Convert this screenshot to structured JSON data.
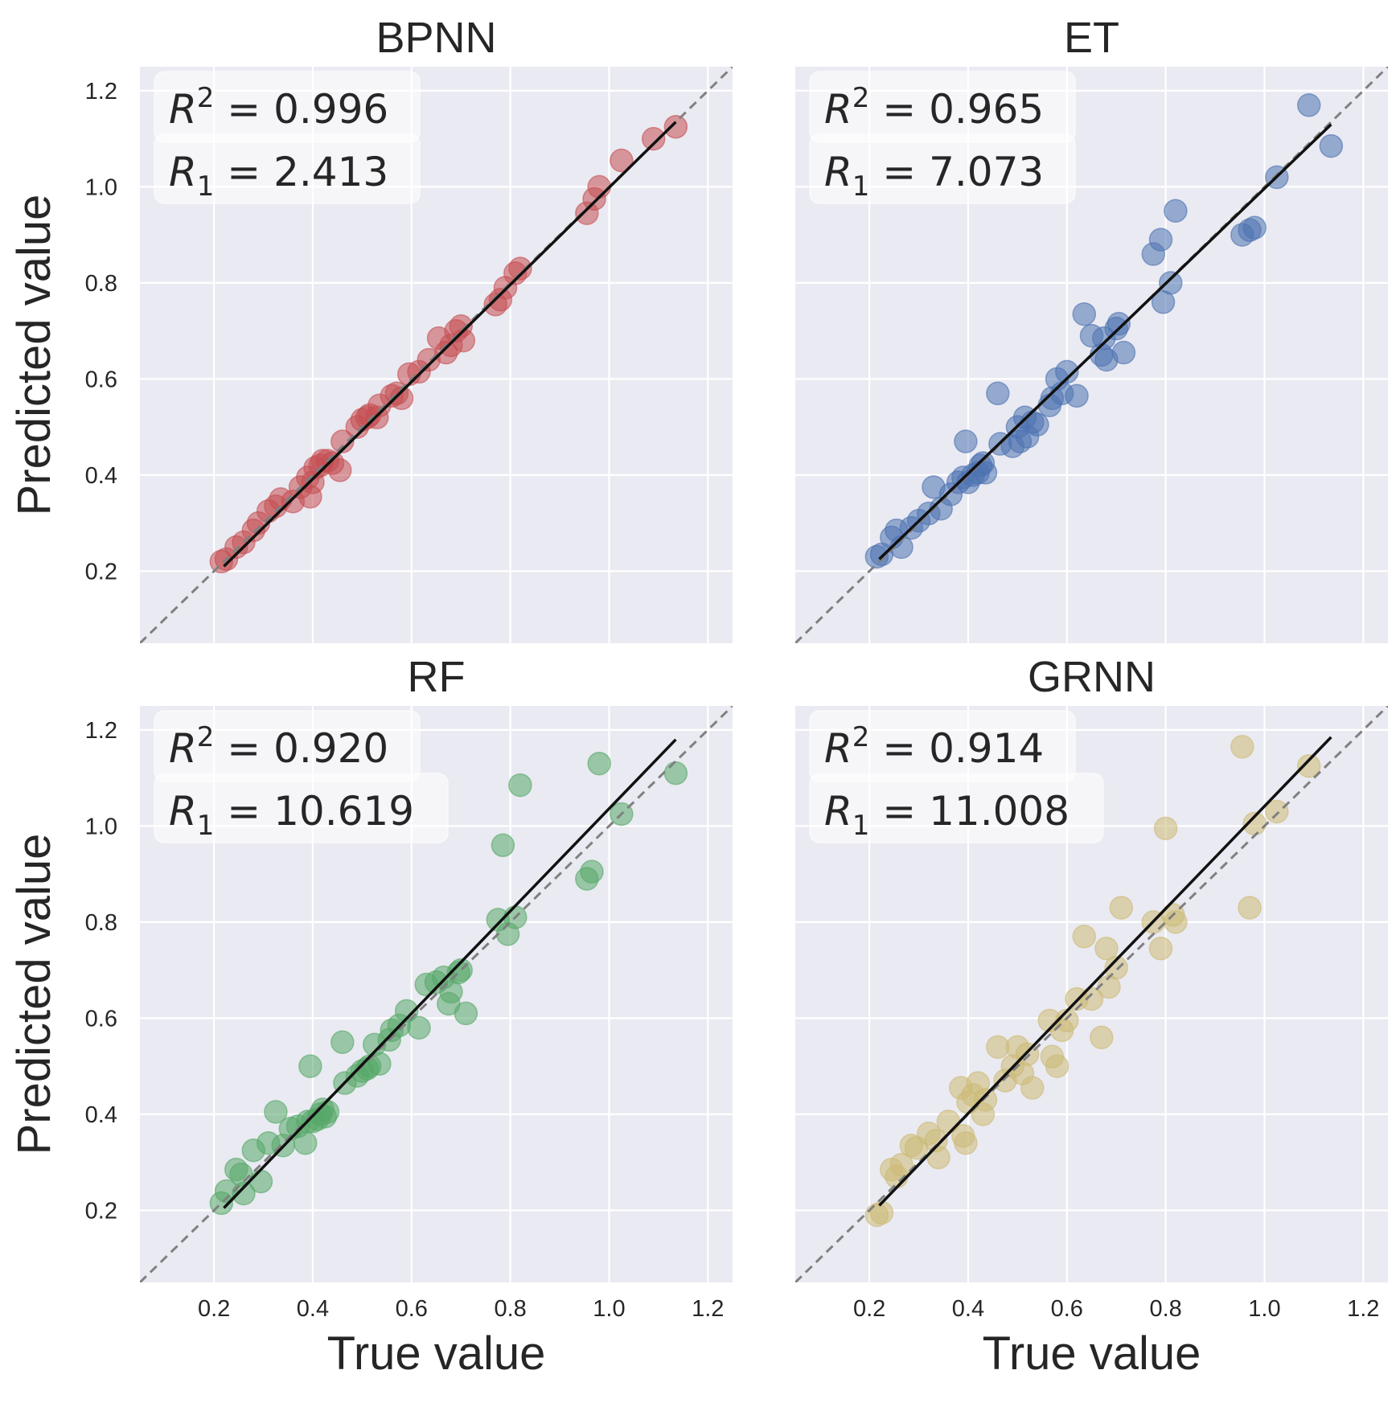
{
  "chart_data": [
    {
      "type": "scatter",
      "title": "BPNN",
      "xlabel": "",
      "ylabel": "Predicted value",
      "xlim": [
        0.05,
        1.25
      ],
      "ylim": [
        0.05,
        1.25
      ],
      "xticks": [
        "0.2",
        "0.4",
        "0.6",
        "0.8",
        "1.0",
        "1.2"
      ],
      "yticks": [
        "0.2",
        "0.4",
        "0.6",
        "0.8",
        "1.0",
        "1.2"
      ],
      "show_xticks": false,
      "show_yticks": true,
      "color": "#c44e52",
      "annotation": {
        "r2_sym": "R",
        "r2_sup": "2",
        "r2_val": " = 0.996",
        "r1_sym": "R",
        "r1_sub": "1",
        "r1_val": " = 2.413"
      },
      "fit_line": [
        [
          0.22,
          0.21
        ],
        [
          1.135,
          1.135
        ]
      ],
      "points": [
        [
          0.215,
          0.22
        ],
        [
          0.225,
          0.225
        ],
        [
          0.245,
          0.25
        ],
        [
          0.26,
          0.26
        ],
        [
          0.28,
          0.285
        ],
        [
          0.29,
          0.3
        ],
        [
          0.31,
          0.325
        ],
        [
          0.325,
          0.335
        ],
        [
          0.335,
          0.35
        ],
        [
          0.36,
          0.345
        ],
        [
          0.375,
          0.375
        ],
        [
          0.39,
          0.395
        ],
        [
          0.395,
          0.355
        ],
        [
          0.4,
          0.385
        ],
        [
          0.405,
          0.415
        ],
        [
          0.415,
          0.42
        ],
        [
          0.42,
          0.43
        ],
        [
          0.43,
          0.43
        ],
        [
          0.44,
          0.425
        ],
        [
          0.455,
          0.41
        ],
        [
          0.46,
          0.47
        ],
        [
          0.49,
          0.5
        ],
        [
          0.5,
          0.515
        ],
        [
          0.51,
          0.52
        ],
        [
          0.515,
          0.525
        ],
        [
          0.53,
          0.52
        ],
        [
          0.535,
          0.545
        ],
        [
          0.56,
          0.565
        ],
        [
          0.57,
          0.57
        ],
        [
          0.58,
          0.56
        ],
        [
          0.595,
          0.61
        ],
        [
          0.615,
          0.615
        ],
        [
          0.635,
          0.64
        ],
        [
          0.655,
          0.685
        ],
        [
          0.67,
          0.655
        ],
        [
          0.68,
          0.67
        ],
        [
          0.69,
          0.7
        ],
        [
          0.7,
          0.71
        ],
        [
          0.705,
          0.68
        ],
        [
          0.77,
          0.755
        ],
        [
          0.78,
          0.765
        ],
        [
          0.79,
          0.79
        ],
        [
          0.81,
          0.82
        ],
        [
          0.82,
          0.83
        ],
        [
          0.955,
          0.945
        ],
        [
          0.97,
          0.975
        ],
        [
          0.98,
          1.0
        ],
        [
          1.025,
          1.055
        ],
        [
          1.09,
          1.1
        ],
        [
          1.135,
          1.125
        ]
      ]
    },
    {
      "type": "scatter",
      "title": "ET",
      "xlabel": "",
      "ylabel": "",
      "xlim": [
        0.05,
        1.25
      ],
      "ylim": [
        0.05,
        1.25
      ],
      "xticks": [
        "0.2",
        "0.4",
        "0.6",
        "0.8",
        "1.0",
        "1.2"
      ],
      "yticks": [
        "0.2",
        "0.4",
        "0.6",
        "0.8",
        "1.0",
        "1.2"
      ],
      "show_xticks": false,
      "show_yticks": false,
      "color": "#4c72b0",
      "annotation": {
        "r2_sym": "R",
        "r2_sup": "2",
        "r2_val": " = 0.965",
        "r1_sym": "R",
        "r1_sub": "1",
        "r1_val": " = 7.073"
      },
      "fit_line": [
        [
          0.22,
          0.225
        ],
        [
          1.135,
          1.13
        ]
      ],
      "points": [
        [
          0.215,
          0.23
        ],
        [
          0.225,
          0.235
        ],
        [
          0.245,
          0.27
        ],
        [
          0.255,
          0.285
        ],
        [
          0.265,
          0.25
        ],
        [
          0.285,
          0.29
        ],
        [
          0.3,
          0.305
        ],
        [
          0.32,
          0.32
        ],
        [
          0.33,
          0.375
        ],
        [
          0.345,
          0.33
        ],
        [
          0.365,
          0.36
        ],
        [
          0.38,
          0.385
        ],
        [
          0.39,
          0.395
        ],
        [
          0.395,
          0.47
        ],
        [
          0.4,
          0.385
        ],
        [
          0.41,
          0.4
        ],
        [
          0.42,
          0.405
        ],
        [
          0.425,
          0.42
        ],
        [
          0.43,
          0.425
        ],
        [
          0.435,
          0.405
        ],
        [
          0.46,
          0.57
        ],
        [
          0.465,
          0.465
        ],
        [
          0.49,
          0.46
        ],
        [
          0.5,
          0.5
        ],
        [
          0.505,
          0.47
        ],
        [
          0.515,
          0.52
        ],
        [
          0.52,
          0.48
        ],
        [
          0.53,
          0.51
        ],
        [
          0.54,
          0.505
        ],
        [
          0.565,
          0.545
        ],
        [
          0.57,
          0.56
        ],
        [
          0.58,
          0.6
        ],
        [
          0.59,
          0.57
        ],
        [
          0.6,
          0.615
        ],
        [
          0.62,
          0.565
        ],
        [
          0.635,
          0.735
        ],
        [
          0.65,
          0.69
        ],
        [
          0.67,
          0.65
        ],
        [
          0.675,
          0.685
        ],
        [
          0.68,
          0.64
        ],
        [
          0.7,
          0.705
        ],
        [
          0.705,
          0.715
        ],
        [
          0.715,
          0.655
        ],
        [
          0.775,
          0.86
        ],
        [
          0.79,
          0.89
        ],
        [
          0.795,
          0.76
        ],
        [
          0.81,
          0.8
        ],
        [
          0.82,
          0.95
        ],
        [
          0.955,
          0.9
        ],
        [
          0.97,
          0.91
        ],
        [
          0.98,
          0.915
        ],
        [
          1.025,
          1.02
        ],
        [
          1.09,
          1.17
        ],
        [
          1.135,
          1.085
        ]
      ]
    },
    {
      "type": "scatter",
      "title": "RF",
      "xlabel": "True value",
      "ylabel": "Predicted value",
      "xlim": [
        0.05,
        1.25
      ],
      "ylim": [
        0.05,
        1.25
      ],
      "xticks": [
        "0.2",
        "0.4",
        "0.6",
        "0.8",
        "1.0",
        "1.2"
      ],
      "yticks": [
        "0.2",
        "0.4",
        "0.6",
        "0.8",
        "1.0",
        "1.2"
      ],
      "show_xticks": true,
      "show_yticks": true,
      "color": "#55a868",
      "annotation": {
        "r2_sym": "R",
        "r2_sup": "2",
        "r2_val": " = 0.920",
        "r1_sym": "R",
        "r1_sub": "1",
        "r1_val": " = 10.619"
      },
      "fit_line": [
        [
          0.22,
          0.205
        ],
        [
          1.135,
          1.18
        ]
      ],
      "points": [
        [
          0.215,
          0.215
        ],
        [
          0.225,
          0.24
        ],
        [
          0.245,
          0.285
        ],
        [
          0.255,
          0.275
        ],
        [
          0.26,
          0.235
        ],
        [
          0.28,
          0.325
        ],
        [
          0.295,
          0.26
        ],
        [
          0.31,
          0.34
        ],
        [
          0.325,
          0.405
        ],
        [
          0.34,
          0.335
        ],
        [
          0.355,
          0.37
        ],
        [
          0.37,
          0.375
        ],
        [
          0.385,
          0.34
        ],
        [
          0.39,
          0.385
        ],
        [
          0.395,
          0.5
        ],
        [
          0.4,
          0.385
        ],
        [
          0.41,
          0.39
        ],
        [
          0.415,
          0.4
        ],
        [
          0.42,
          0.41
        ],
        [
          0.425,
          0.395
        ],
        [
          0.43,
          0.405
        ],
        [
          0.46,
          0.55
        ],
        [
          0.465,
          0.465
        ],
        [
          0.49,
          0.48
        ],
        [
          0.5,
          0.49
        ],
        [
          0.51,
          0.495
        ],
        [
          0.515,
          0.5
        ],
        [
          0.525,
          0.545
        ],
        [
          0.535,
          0.505
        ],
        [
          0.555,
          0.555
        ],
        [
          0.56,
          0.575
        ],
        [
          0.575,
          0.585
        ],
        [
          0.59,
          0.615
        ],
        [
          0.615,
          0.58
        ],
        [
          0.63,
          0.67
        ],
        [
          0.65,
          0.675
        ],
        [
          0.665,
          0.685
        ],
        [
          0.675,
          0.63
        ],
        [
          0.68,
          0.655
        ],
        [
          0.695,
          0.695
        ],
        [
          0.7,
          0.7
        ],
        [
          0.71,
          0.61
        ],
        [
          0.775,
          0.805
        ],
        [
          0.785,
          0.96
        ],
        [
          0.795,
          0.775
        ],
        [
          0.81,
          0.81
        ],
        [
          0.82,
          1.085
        ],
        [
          0.955,
          0.89
        ],
        [
          0.965,
          0.905
        ],
        [
          0.98,
          1.13
        ],
        [
          1.025,
          1.025
        ],
        [
          1.135,
          1.11
        ]
      ]
    },
    {
      "type": "scatter",
      "title": "GRNN",
      "xlabel": "True value",
      "ylabel": "",
      "xlim": [
        0.05,
        1.25
      ],
      "ylim": [
        0.05,
        1.25
      ],
      "xticks": [
        "0.2",
        "0.4",
        "0.6",
        "0.8",
        "1.0",
        "1.2"
      ],
      "yticks": [
        "0.2",
        "0.4",
        "0.6",
        "0.8",
        "1.0",
        "1.2"
      ],
      "show_xticks": true,
      "show_yticks": false,
      "color": "#ccb974",
      "annotation": {
        "r2_sym": "R",
        "r2_sup": "2",
        "r2_val": " = 0.914",
        "r1_sym": "R",
        "r1_sub": "1",
        "r1_val": " = 11.008"
      },
      "fit_line": [
        [
          0.22,
          0.21
        ],
        [
          1.135,
          1.185
        ]
      ],
      "points": [
        [
          0.215,
          0.19
        ],
        [
          0.225,
          0.195
        ],
        [
          0.245,
          0.285
        ],
        [
          0.255,
          0.27
        ],
        [
          0.265,
          0.295
        ],
        [
          0.285,
          0.335
        ],
        [
          0.295,
          0.33
        ],
        [
          0.32,
          0.36
        ],
        [
          0.335,
          0.345
        ],
        [
          0.34,
          0.31
        ],
        [
          0.36,
          0.385
        ],
        [
          0.385,
          0.455
        ],
        [
          0.39,
          0.355
        ],
        [
          0.395,
          0.34
        ],
        [
          0.4,
          0.425
        ],
        [
          0.41,
          0.44
        ],
        [
          0.42,
          0.465
        ],
        [
          0.43,
          0.4
        ],
        [
          0.435,
          0.43
        ],
        [
          0.46,
          0.54
        ],
        [
          0.475,
          0.47
        ],
        [
          0.49,
          0.5
        ],
        [
          0.5,
          0.54
        ],
        [
          0.51,
          0.485
        ],
        [
          0.52,
          0.525
        ],
        [
          0.53,
          0.455
        ],
        [
          0.565,
          0.595
        ],
        [
          0.57,
          0.52
        ],
        [
          0.58,
          0.5
        ],
        [
          0.59,
          0.575
        ],
        [
          0.6,
          0.595
        ],
        [
          0.62,
          0.64
        ],
        [
          0.635,
          0.77
        ],
        [
          0.65,
          0.64
        ],
        [
          0.67,
          0.56
        ],
        [
          0.68,
          0.745
        ],
        [
          0.685,
          0.665
        ],
        [
          0.7,
          0.705
        ],
        [
          0.71,
          0.83
        ],
        [
          0.775,
          0.8
        ],
        [
          0.79,
          0.745
        ],
        [
          0.8,
          0.995
        ],
        [
          0.815,
          0.815
        ],
        [
          0.82,
          0.8
        ],
        [
          0.955,
          1.165
        ],
        [
          0.97,
          0.83
        ],
        [
          0.98,
          1.005
        ],
        [
          1.025,
          1.03
        ],
        [
          1.09,
          1.125
        ]
      ]
    }
  ]
}
